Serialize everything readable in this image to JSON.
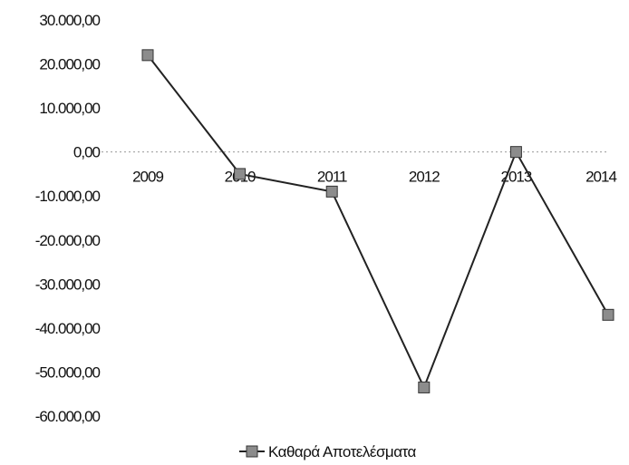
{
  "chart_data": {
    "type": "line",
    "categories": [
      "2009",
      "2010",
      "2011",
      "2012",
      "2013",
      "2014"
    ],
    "series": [
      {
        "name": "Καθαρά Αποτελέσματα",
        "values": [
          22000,
          -5000,
          -9000,
          -53500,
          0,
          -37000
        ],
        "color": "#222222",
        "marker": "square"
      }
    ],
    "yticks": [
      "30.000,00",
      "20.000,00",
      "10.000,00",
      "0,00",
      "-10.000,00",
      "-20.000,00",
      "-30.000,00",
      "-40.000,00",
      "-50.000,00",
      "-60.000,00"
    ],
    "ytick_values": [
      30000,
      20000,
      10000,
      0,
      -10000,
      -20000,
      -30000,
      -40000,
      -50000,
      -60000
    ],
    "ylim": [
      -60000,
      30000
    ],
    "grid": false,
    "legend": "bottom"
  }
}
